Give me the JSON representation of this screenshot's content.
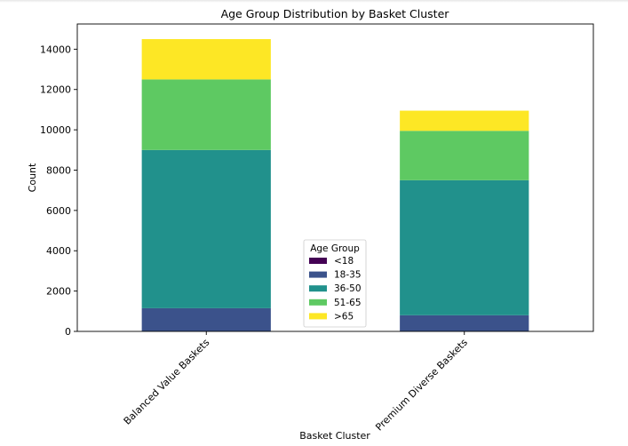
{
  "chart_data": {
    "type": "bar",
    "stacked": true,
    "title": "Age Group Distribution by Basket Cluster",
    "xlabel": "Basket Cluster",
    "ylabel": "Count",
    "categories": [
      "Balanced Value Baskets",
      "Premium Diverse Baskets"
    ],
    "ylim": [
      0,
      15250
    ],
    "yticks": [
      0,
      2000,
      4000,
      6000,
      8000,
      10000,
      12000,
      14000
    ],
    "legend": {
      "title": "Age Group",
      "placement": "lower-center"
    },
    "series": [
      {
        "name": "<18",
        "color": "#440154",
        "values": [
          0,
          0
        ]
      },
      {
        "name": "18-35",
        "color": "#3b528b",
        "values": [
          1150,
          800
        ]
      },
      {
        "name": "36-50",
        "color": "#21918c",
        "values": [
          7850,
          6700
        ]
      },
      {
        "name": "51-65",
        "color": "#5ec962",
        "values": [
          3500,
          2450
        ]
      },
      {
        "name": ">65",
        "color": "#fde725",
        "values": [
          2000,
          1000
        ]
      }
    ]
  }
}
